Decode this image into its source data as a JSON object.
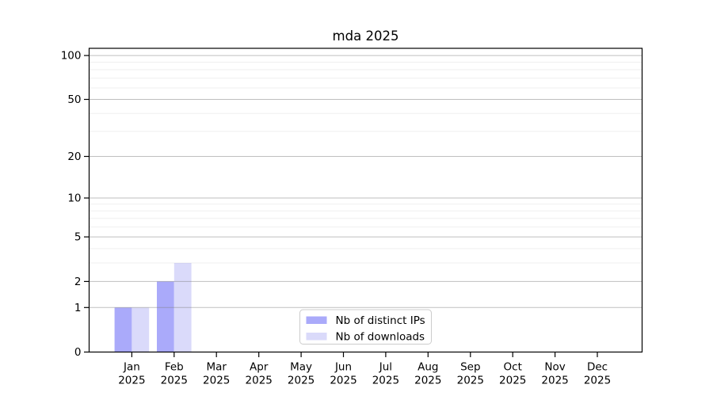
{
  "chart_data": {
    "type": "bar",
    "title": "mda 2025",
    "y_scale": "log1p",
    "grid": true,
    "legend_position": "lower center",
    "categories": [
      {
        "month": "Jan",
        "year": "2025"
      },
      {
        "month": "Feb",
        "year": "2025"
      },
      {
        "month": "Mar",
        "year": "2025"
      },
      {
        "month": "Apr",
        "year": "2025"
      },
      {
        "month": "May",
        "year": "2025"
      },
      {
        "month": "Jun",
        "year": "2025"
      },
      {
        "month": "Jul",
        "year": "2025"
      },
      {
        "month": "Aug",
        "year": "2025"
      },
      {
        "month": "Sep",
        "year": "2025"
      },
      {
        "month": "Oct",
        "year": "2025"
      },
      {
        "month": "Nov",
        "year": "2025"
      },
      {
        "month": "Dec",
        "year": "2025"
      }
    ],
    "series": [
      {
        "name": "Nb of distinct IPs",
        "color": "#aaaafa",
        "values": [
          1,
          2,
          0,
          0,
          0,
          0,
          0,
          0,
          0,
          0,
          0,
          0
        ]
      },
      {
        "name": "Nb of downloads",
        "color": "#dadafa",
        "values": [
          1,
          3,
          0,
          0,
          0,
          0,
          0,
          0,
          0,
          0,
          0,
          0
        ]
      }
    ],
    "y_major_ticks": [
      0,
      1,
      2,
      5,
      10,
      20,
      50,
      100
    ],
    "y_minor_gridlines": [
      3,
      4,
      6,
      7,
      8,
      9,
      30,
      40,
      60,
      70,
      80,
      90
    ],
    "ylim": [
      0,
      112
    ]
  },
  "colors": {
    "axis": "#000000",
    "grid_major": "#b9b9b9",
    "grid_minor": "#eaeaea",
    "legend_border": "#cccccc",
    "background": "#ffffff"
  }
}
